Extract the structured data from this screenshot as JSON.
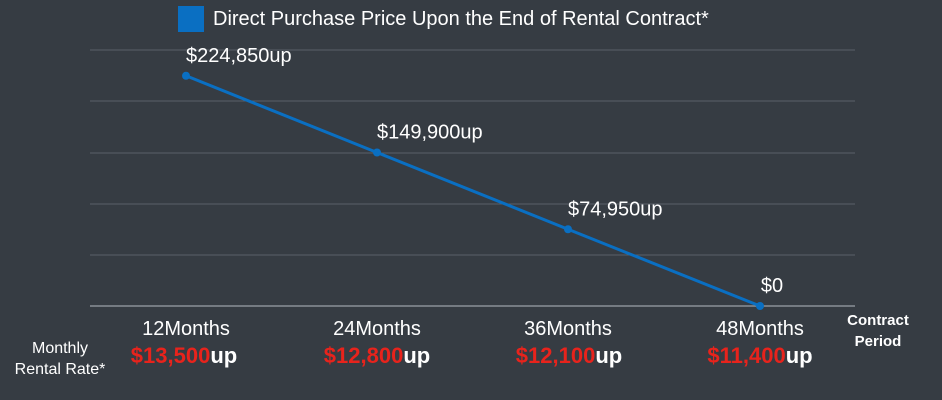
{
  "legend": {
    "label": "Direct Purchase Price Upon the End of Rental Contract*",
    "color": "#0a6fc2"
  },
  "chart_data": {
    "type": "line",
    "categories": [
      "12Months",
      "24Months",
      "36Months",
      "48Months"
    ],
    "series": [
      {
        "name": "Direct Purchase Price Upon the End of Rental Contract*",
        "values": [
          224850,
          149900,
          74950,
          0
        ],
        "labels": [
          "$224,850up",
          "$149,900up",
          "$74,950up",
          "$0"
        ],
        "color": "#0a6fc2"
      }
    ],
    "ylim": [
      0,
      250000
    ],
    "grid": true,
    "legend_position": "top"
  },
  "x_axis_title": "Contract\nPeriod",
  "rental": {
    "row_label": "Monthly\nRental Rate*",
    "rates": [
      {
        "amount": "$13,500",
        "suffix": "up"
      },
      {
        "amount": "$12,800",
        "suffix": "up"
      },
      {
        "amount": "$12,100",
        "suffix": "up"
      },
      {
        "amount": "$11,400",
        "suffix": "up"
      }
    ],
    "amount_color": "#e8231c"
  }
}
